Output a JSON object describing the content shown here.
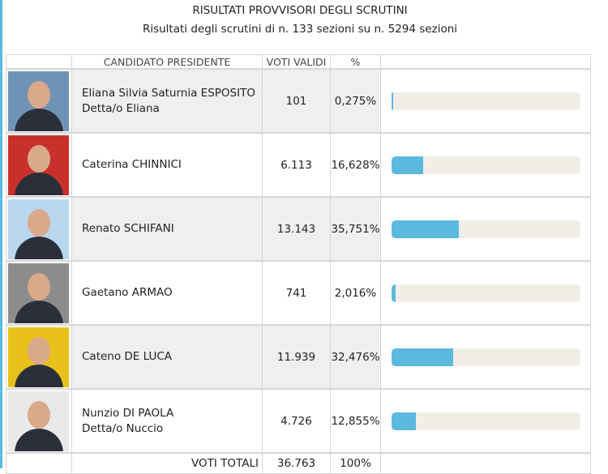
{
  "header": {
    "title": "RISULTATI PROVVISORI DEGLI SCRUTINI",
    "subtitle": "Risultati degli scrutini di n. 133 sezioni su n. 5294 sezioni"
  },
  "table": {
    "columns": [
      "CANDIDATO PRESIDENTE",
      "VOTI VALIDI",
      "%"
    ],
    "rows": [
      {
        "name": [
          "Eliana Silvia Saturnia ESPOSITO",
          "Detta/o Eliana"
        ],
        "votes": "101",
        "percent": "0,275%"
      },
      {
        "name": [
          "Caterina CHINNICI"
        ],
        "votes": "6.113",
        "percent": "16,628%"
      },
      {
        "name": [
          "Renato SCHIFANI"
        ],
        "votes": "13.143",
        "percent": "35,751%"
      },
      {
        "name": [
          "Gaetano ARMAO"
        ],
        "votes": "741",
        "percent": "2,016%"
      },
      {
        "name": [
          "Cateno DE LUCA"
        ],
        "votes": "11.939",
        "percent": "32,476%"
      },
      {
        "name": [
          "Nunzio DI PAOLA",
          "Detta/o Nuccio"
        ],
        "votes": "4.726",
        "percent": "12,855%"
      }
    ],
    "total": {
      "label": "VOTI TOTALI",
      "votes": "36.763",
      "percent": "100%"
    }
  }
}
